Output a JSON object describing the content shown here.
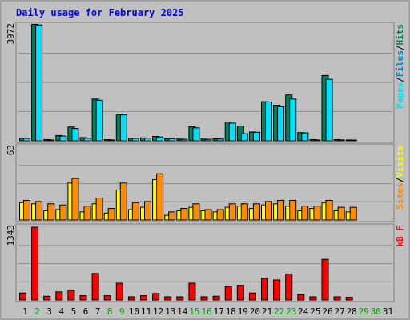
{
  "chart_data": {
    "type": "bar",
    "title": "Daily usage for February 2025",
    "categories": [
      "1",
      "2",
      "3",
      "4",
      "5",
      "6",
      "7",
      "8",
      "9",
      "10",
      "11",
      "12",
      "13",
      "14",
      "15",
      "16",
      "17",
      "18",
      "19",
      "20",
      "21",
      "22",
      "23",
      "24",
      "25",
      "26",
      "27",
      "28",
      "29",
      "30",
      "31"
    ],
    "weekend_days": [
      "2",
      "8",
      "9",
      "15",
      "16",
      "22",
      "23",
      "29",
      "30"
    ],
    "panels": [
      {
        "max_label": "3972",
        "ylim": [
          0,
          3972
        ],
        "legend": [
          "Pages",
          "Files",
          "Hits"
        ],
        "series": [
          {
            "name": "Hits",
            "color": "#00805c",
            "values": [
              90,
              3960,
              40,
              180,
              470,
              110,
              1420,
              40,
              900,
              90,
              100,
              150,
              80,
              60,
              480,
              60,
              70,
              640,
              500,
              300,
              1330,
              1210,
              1560,
              280,
              40,
              2220,
              40,
              30,
              0,
              0,
              0
            ]
          },
          {
            "name": "Files",
            "color": "#00e0ff",
            "values": [
              80,
              3940,
              30,
              160,
              420,
              90,
              1380,
              30,
              880,
              80,
              90,
              130,
              70,
              50,
              440,
              50,
              60,
              600,
              240,
              290,
              1320,
              1160,
              1420,
              270,
              30,
              2090,
              30,
              20,
              0,
              0,
              0
            ]
          }
        ]
      },
      {
        "max_label": "63",
        "ylim": [
          0,
          63
        ],
        "legend": [
          "Sites",
          "Visits"
        ],
        "series": [
          {
            "name": "Visits",
            "color": "#ffff00",
            "values": [
              15,
              14,
              8,
              9,
              32,
              7,
              14,
              6,
              26,
              9,
              11,
              35,
              4,
              8,
              11,
              8,
              7,
              11,
              12,
              10,
              13,
              14,
              12,
              8,
              10,
              15,
              8,
              7,
              0,
              0,
              0
            ]
          },
          {
            "name": "Sites",
            "color": "#ff8c00",
            "values": [
              17,
              16,
              14,
              13,
              36,
              12,
              19,
              10,
              32,
              15,
              16,
              40,
              7,
              10,
              14,
              9,
              9,
              14,
              14,
              14,
              16,
              17,
              17,
              12,
              12,
              17,
              11,
              11,
              0,
              0,
              0
            ]
          }
        ]
      },
      {
        "max_label": "1343",
        "ylim": [
          0,
          1343
        ],
        "legend": [
          "kB F"
        ],
        "series": [
          {
            "name": "kB F",
            "color": "#ff0000",
            "values": [
              130,
              1343,
              70,
              150,
              180,
              80,
              490,
              80,
              310,
              60,
              80,
              120,
              60,
              60,
              310,
              60,
              70,
              250,
              270,
              130,
              400,
              370,
              480,
              100,
              60,
              750,
              60,
              50,
              0,
              0,
              0
            ]
          }
        ]
      }
    ],
    "colors": {
      "background": "#c0c0c0",
      "title": "#0000ff",
      "frame": "#808080",
      "grid": "#909090",
      "weekday_label": "#000000",
      "weekend_label": "#00a000"
    }
  }
}
